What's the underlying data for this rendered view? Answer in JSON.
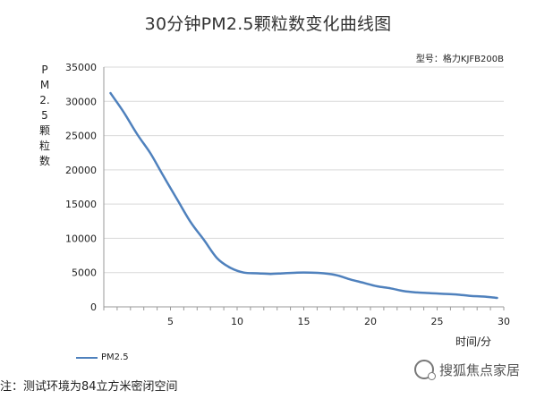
{
  "title": "30分钟PM2.5颗粒数变化曲线图",
  "model": "型号：格力KJFB200B",
  "note": "注：测试环境为84立方米密闭空间",
  "watermark": "搜狐焦点家居",
  "colors": {
    "series": "#4f81bd",
    "grid": "#d9d9d9",
    "axis": "#999999"
  },
  "chart_data": {
    "type": "line",
    "title": "30分钟PM2.5颗粒数变化曲线图",
    "ylabel": "PM2.5颗粒数",
    "xlabel": "时间/分",
    "xlim": [
      0,
      30
    ],
    "ylim": [
      0,
      35000
    ],
    "yticks": [
      "0",
      "5000",
      "10000",
      "15000",
      "20000",
      "25000",
      "30000",
      "35000"
    ],
    "xticks": [
      "5",
      "10",
      "15",
      "20",
      "25",
      "30"
    ],
    "grid": true,
    "legend": "bottom-left",
    "series": [
      {
        "name": "PM2.5",
        "x": [
          0.5,
          1.5,
          2.5,
          3.5,
          4.5,
          5.5,
          6.5,
          7.5,
          8.5,
          9.5,
          10.5,
          11.5,
          12.5,
          13.5,
          14.5,
          15.5,
          16.5,
          17.5,
          18.5,
          19.5,
          20.5,
          21.5,
          22.5,
          23.5,
          24.5,
          25.5,
          26.5,
          27.5,
          28.5,
          29.5
        ],
        "values": [
          31200,
          28400,
          25200,
          22400,
          19000,
          15700,
          12400,
          9800,
          7100,
          5700,
          5000,
          4900,
          4800,
          4900,
          5000,
          5000,
          4900,
          4600,
          4000,
          3500,
          3000,
          2700,
          2300,
          2100,
          2000,
          1900,
          1800,
          1600,
          1500,
          1300
        ]
      }
    ]
  }
}
